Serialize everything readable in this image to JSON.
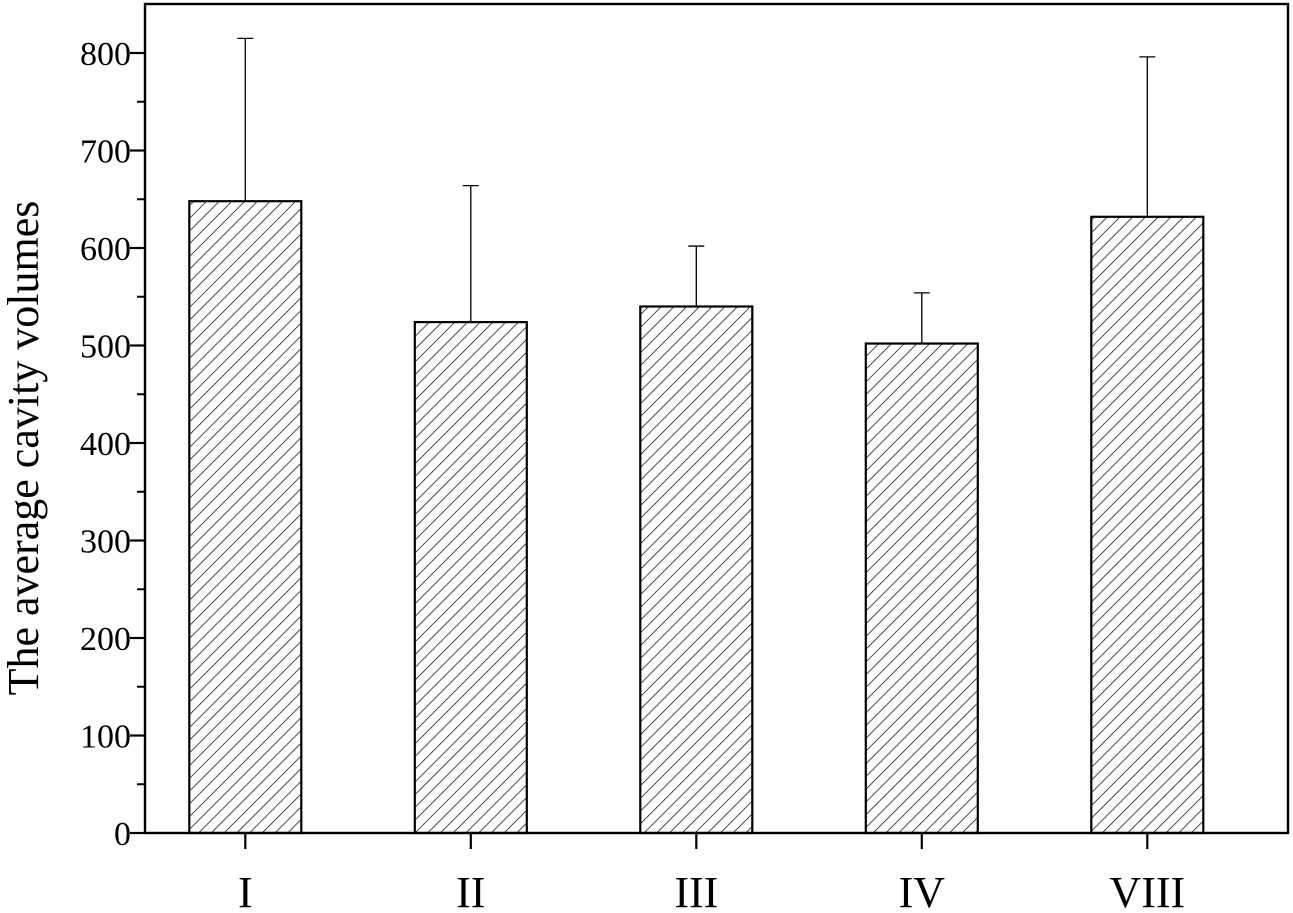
{
  "chart_data": {
    "type": "bar",
    "title": "",
    "xlabel": "",
    "ylabel": "The average cavity volumes",
    "categories": [
      "I",
      "II",
      "III",
      "IV",
      "VIII"
    ],
    "values": [
      648,
      524,
      540,
      502,
      632
    ],
    "error_upper": [
      815,
      664,
      602,
      554,
      796
    ],
    "ylim": [
      0,
      850
    ],
    "yticks": [
      0,
      100,
      200,
      300,
      400,
      500,
      600,
      700,
      800
    ],
    "ytick_labels": [
      "0",
      "100",
      "200",
      "300",
      "400",
      "500",
      "600",
      "700",
      "800"
    ],
    "bar_fill": "diagonal-hatch",
    "grid": false,
    "legend": "none"
  },
  "colors": {
    "bar_stroke": "#000000",
    "hatch": "#000000",
    "background": "#ffffff"
  }
}
